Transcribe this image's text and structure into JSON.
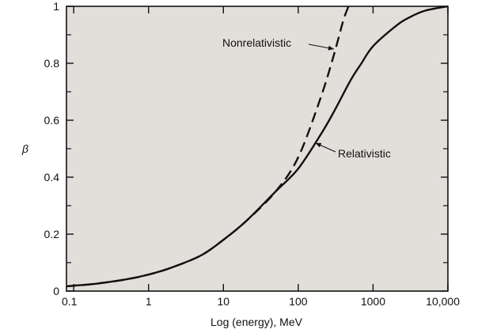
{
  "chart_data": {
    "type": "line",
    "xscale": "log",
    "xlim": [
      0.08,
      10000
    ],
    "ylim": [
      0,
      1
    ],
    "xlabel": "Log (energy), MeV",
    "ylabel": "β",
    "x_ticks": [
      {
        "value": 0.1,
        "label": "0.1"
      },
      {
        "value": 1,
        "label": "1"
      },
      {
        "value": 10,
        "label": "10"
      },
      {
        "value": 100,
        "label": "100"
      },
      {
        "value": 1000,
        "label": "1000"
      },
      {
        "value": 10000,
        "label": "10,000"
      }
    ],
    "y_ticks": [
      {
        "value": 0,
        "label": "0"
      },
      {
        "value": 0.2,
        "label": "0.2"
      },
      {
        "value": 0.4,
        "label": "0.4"
      },
      {
        "value": 0.6,
        "label": "0.6"
      },
      {
        "value": 0.8,
        "label": "0.8"
      },
      {
        "value": 1,
        "label": "1"
      }
    ],
    "series": [
      {
        "name": "Relativistic",
        "style": "solid",
        "x": [
          0.08,
          0.1,
          0.2,
          0.5,
          1,
          2,
          5,
          10,
          20,
          50,
          100,
          200,
          300,
          500,
          700,
          1000,
          2000,
          3000,
          5000,
          10000
        ],
        "y": [
          0.017,
          0.019,
          0.026,
          0.041,
          0.058,
          0.082,
          0.125,
          0.18,
          0.245,
          0.35,
          0.43,
          0.55,
          0.63,
          0.74,
          0.8,
          0.86,
          0.93,
          0.96,
          0.985,
          1.0
        ]
      },
      {
        "name": "Nonrelativistic",
        "style": "dashed",
        "x": [
          0.08,
          0.1,
          0.2,
          0.5,
          1,
          2,
          5,
          10,
          20,
          50,
          100,
          200,
          300,
          400,
          470
        ],
        "y": [
          0.017,
          0.019,
          0.026,
          0.041,
          0.058,
          0.082,
          0.125,
          0.18,
          0.245,
          0.35,
          0.47,
          0.68,
          0.83,
          0.95,
          1.0
        ]
      }
    ],
    "annotations": [
      {
        "text": "Nonrelativistic",
        "series": "Nonrelativistic",
        "arrow_to": {
          "x": 300,
          "y": 0.85
        }
      },
      {
        "text": "Relativistic",
        "series": "Relativistic",
        "arrow_to": {
          "x": 170,
          "y": 0.52
        }
      }
    ]
  },
  "colors": {
    "plot_background": "#e2dfdb",
    "ink": "#111111"
  }
}
